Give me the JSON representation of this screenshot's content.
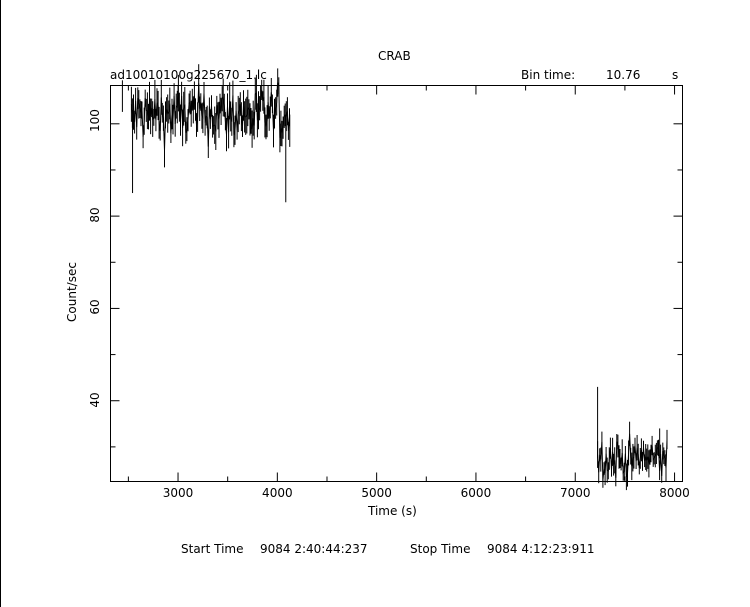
{
  "chart_data": {
    "type": "line",
    "title": "CRAB",
    "subtitle_left": "ad10010100g225670_1.lc",
    "bin_time_label": "Bin time:",
    "bin_time_value": "10.76",
    "bin_time_unit": "s",
    "xlabel": "Time (s)",
    "ylabel": "Count/sec",
    "xlim": [
      2320,
      8080
    ],
    "ylim": [
      22.5,
      108.3
    ],
    "x_ticks": [
      3000,
      4000,
      5000,
      6000,
      7000,
      8000
    ],
    "x_tick_labels": [
      "3000",
      "4000",
      "5000",
      "6000",
      "7000",
      "8000"
    ],
    "y_ticks": [
      40,
      60,
      80,
      100
    ],
    "y_tick_labels": [
      "40",
      "60",
      "80",
      "100"
    ],
    "segments": [
      {
        "x_start": 2440,
        "x_end": 2450,
        "mean": 103,
        "spread": 3
      },
      {
        "x_start": 2530,
        "x_end": 4130,
        "mean": 102,
        "spread": 3
      },
      {
        "x_start": 7225,
        "x_end": 7935,
        "mean": 27.5,
        "spread": 2.2
      }
    ],
    "spikes": [
      {
        "x": 2542,
        "y": 85
      },
      {
        "x": 4085,
        "y": 83
      },
      {
        "x": 4125,
        "y": 95
      },
      {
        "x": 7225,
        "y": 43
      },
      {
        "x": 7850,
        "y": 34
      }
    ]
  },
  "footer": {
    "start_label": "Start Time",
    "start_value": "9084  2:40:44:237",
    "stop_label": "Stop Time",
    "stop_value": "9084  4:12:23:911"
  }
}
